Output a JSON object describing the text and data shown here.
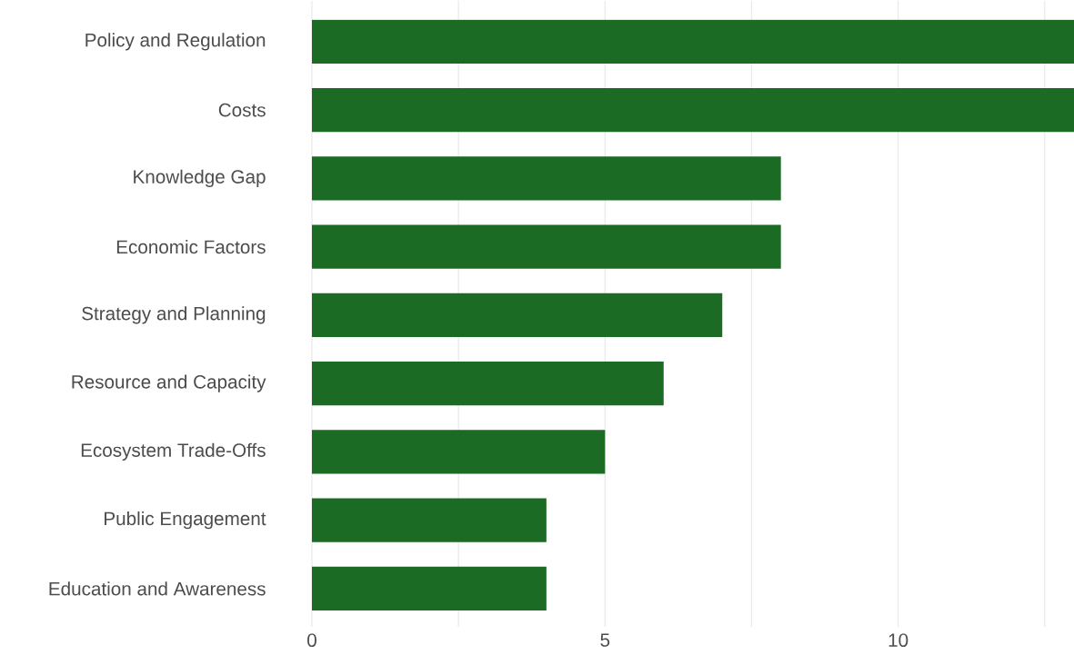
{
  "chart_data": {
    "type": "bar",
    "orientation": "horizontal",
    "categories": [
      "Policy and Regulation",
      "Costs",
      "Knowledge Gap",
      "Economic Factors",
      "Strategy and Planning",
      "Resource and Capacity",
      "Ecosystem Trade-Offs",
      "Public Engagement",
      "Education and Awareness"
    ],
    "values": [
      13,
      13,
      8,
      8,
      7,
      6,
      5,
      4,
      4
    ],
    "color": "#1b6b24",
    "xlim": [
      0,
      13
    ],
    "xticks": [
      0,
      {
        "value": 2.5,
        "label": null
      },
      5,
      {
        "value": 7.5,
        "label": null
      },
      10,
      {
        "value": 12.5,
        "label": null
      }
    ],
    "grid": "x"
  }
}
